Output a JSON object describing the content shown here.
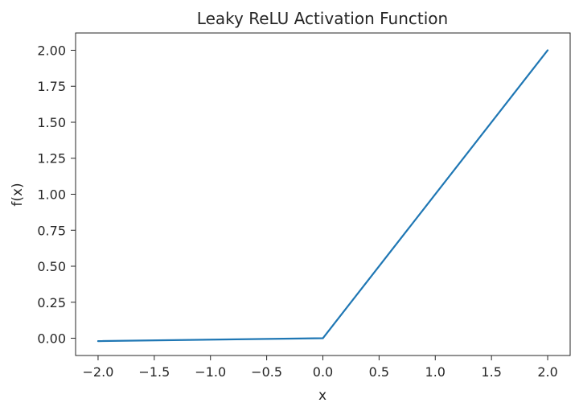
{
  "chart_data": {
    "type": "line",
    "title": "Leaky ReLU Activation Function",
    "xlabel": "x",
    "ylabel": "f(x)",
    "xlim": [
      -2.2,
      2.2
    ],
    "ylim": [
      -0.12,
      2.12
    ],
    "xticks": [
      -2.0,
      -1.5,
      -1.0,
      -0.5,
      0.0,
      0.5,
      1.0,
      1.5,
      2.0
    ],
    "xtick_labels": [
      "−2.0",
      "−1.5",
      "−1.0",
      "−0.5",
      "0.0",
      "0.5",
      "1.0",
      "1.5",
      "2.0"
    ],
    "yticks": [
      0.0,
      0.25,
      0.5,
      0.75,
      1.0,
      1.25,
      1.5,
      1.75,
      2.0
    ],
    "ytick_labels": [
      "0.00",
      "0.25",
      "0.50",
      "0.75",
      "1.00",
      "1.25",
      "1.50",
      "1.75",
      "2.00"
    ],
    "grid": false,
    "series": [
      {
        "color": "#1f77b4",
        "x": [
          -2.0,
          0.0,
          2.0
        ],
        "y": [
          -0.02,
          0.0,
          2.0
        ]
      }
    ]
  }
}
